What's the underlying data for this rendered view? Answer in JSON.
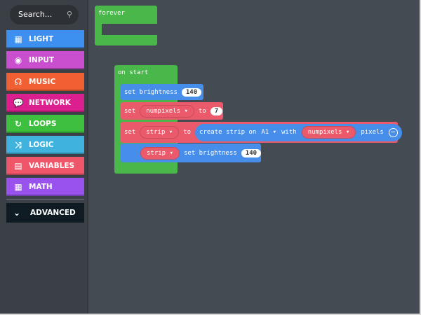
{
  "search": {
    "placeholder": "Search...",
    "icon": "search-icon"
  },
  "categories": [
    {
      "label": "LIGHT",
      "icon": "grid-icon",
      "glyph": "▦",
      "color": "#3d8ff0"
    },
    {
      "label": "INPUT",
      "icon": "target-icon",
      "glyph": "◉",
      "color": "#c94fcf"
    },
    {
      "label": "MUSIC",
      "icon": "headphones-icon",
      "glyph": "☊",
      "color": "#f06032"
    },
    {
      "label": "NETWORK",
      "icon": "chat-icon",
      "glyph": "💬",
      "color": "#dc1f8e"
    },
    {
      "label": "LOOPS",
      "icon": "refresh-icon",
      "glyph": "↻",
      "color": "#3fbf3f"
    },
    {
      "label": "LOGIC",
      "icon": "shuffle-icon",
      "glyph": "⤨",
      "color": "#3fb3de"
    },
    {
      "label": "VARIABLES",
      "icon": "list-icon",
      "glyph": "▤",
      "color": "#f0566a"
    },
    {
      "label": "MATH",
      "icon": "calculator-icon",
      "glyph": "▦",
      "color": "#9a52ee"
    }
  ],
  "advanced": {
    "label": "ADVANCED",
    "icon": "chevron-down-icon",
    "glyph": "⌄"
  },
  "workspace": {
    "forever": {
      "label": "forever"
    },
    "on_start": {
      "label": "on start"
    },
    "set_brightness": {
      "label": "set brightness",
      "value": "140"
    },
    "set_numpixels": {
      "set": "set",
      "var": "numpixels ▾",
      "to": "to",
      "value": "7"
    },
    "set_strip": {
      "set": "set",
      "var": "strip ▾",
      "to": "to",
      "create": "create strip on",
      "pin": "A1 ▾",
      "with": "with",
      "count_var": "numpixels ▾",
      "pixels": "pixels",
      "minus": "−"
    },
    "strip_brightness": {
      "var": "strip ▾",
      "label": "set brightness",
      "value": "140"
    }
  }
}
